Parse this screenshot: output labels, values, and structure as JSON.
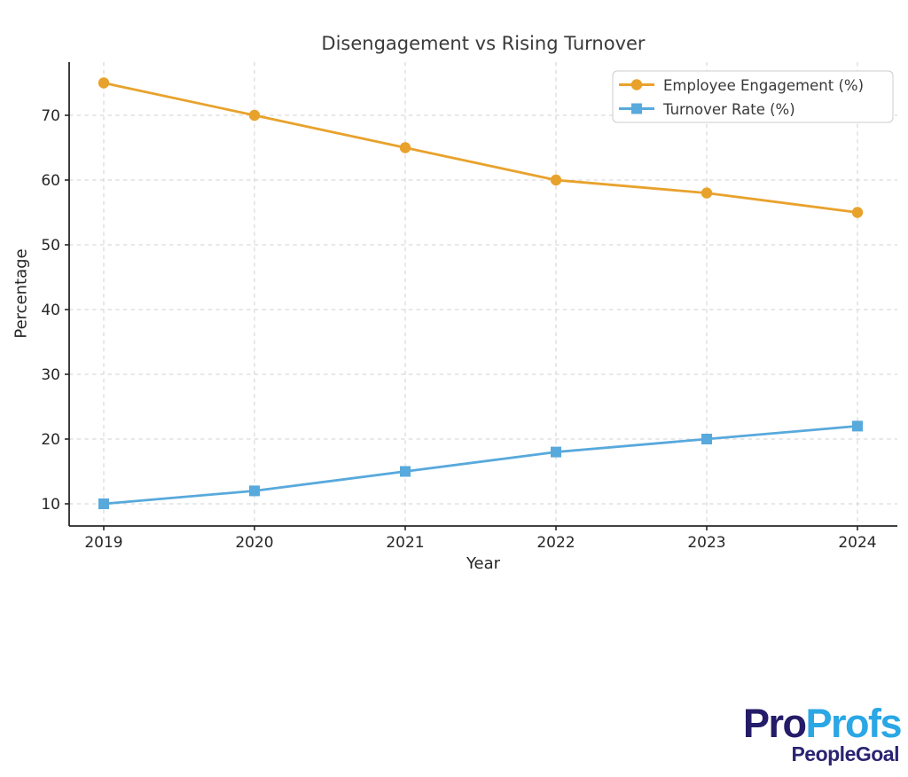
{
  "chart_data": {
    "type": "line",
    "title": "Disengagement vs Rising Turnover",
    "xlabel": "Year",
    "ylabel": "Percentage",
    "categories": [
      "2019",
      "2020",
      "2021",
      "2022",
      "2023",
      "2024"
    ],
    "yticks": [
      10,
      20,
      30,
      40,
      50,
      60,
      70
    ],
    "ylim": [
      7,
      78
    ],
    "grid": true,
    "grid_style": "dashed",
    "legend_position": "upper right",
    "series": [
      {
        "name": "Employee Engagement (%)",
        "values": [
          75,
          70,
          65,
          60,
          58,
          55
        ],
        "color": "#E8A22C",
        "marker": "circle"
      },
      {
        "name": "Turnover Rate (%)",
        "values": [
          10,
          12,
          15,
          18,
          20,
          22
        ],
        "color": "#58A9DC",
        "marker": "square"
      }
    ]
  },
  "logo": {
    "part1": "Pro",
    "part2": "Profs",
    "subtitle": "PeopleGoal",
    "part1_color": "#241C68",
    "part2_color": "#2AA7E4",
    "subtitle_color": "#2A2472"
  }
}
